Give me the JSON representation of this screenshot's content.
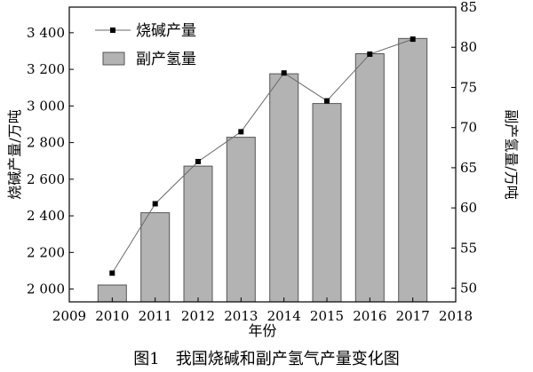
{
  "chart_data": {
    "type": "bar+line",
    "caption": "图1　我国烧碱和副产氢气产量变化图",
    "xlabel": "年份",
    "ylabel_left": "烧碱产量/万吨",
    "ylabel_right": "副产氢量/万吨",
    "x_ticks": [
      "2009",
      "2010",
      "2011",
      "2012",
      "2013",
      "2014",
      "2015",
      "2016",
      "2017",
      "2018"
    ],
    "xlim": [
      2009,
      2018
    ],
    "y_left_ticks": [
      "2 000",
      "2 200",
      "2 400",
      "2 600",
      "2 800",
      "3 000",
      "3 200",
      "3 400"
    ],
    "y_left_tick_values": [
      2000,
      2200,
      2400,
      2600,
      2800,
      3000,
      3200,
      3400
    ],
    "y_left_lim": [
      1930,
      3540
    ],
    "y_right_ticks": [
      "50",
      "55",
      "60",
      "65",
      "70",
      "75",
      "80",
      "85"
    ],
    "y_right_tick_values": [
      50,
      55,
      60,
      65,
      70,
      75,
      80,
      85
    ],
    "y_right_lim": [
      48.3,
      85
    ],
    "categories": [
      "2010",
      "2011",
      "2012",
      "2013",
      "2014",
      "2015",
      "2016",
      "2017"
    ],
    "legend_position": "top-left",
    "series": [
      {
        "name": "烧碱产量",
        "kind": "line",
        "axis": "left",
        "marker": "square",
        "color": "#000000",
        "line_color": "#6a6a6a",
        "x": [
          2010,
          2011,
          2012,
          2013,
          2014,
          2015,
          2016,
          2017
        ],
        "values": [
          2087,
          2466,
          2696,
          2859,
          3180,
          3028,
          3283,
          3365
        ]
      },
      {
        "name": "副产氢量",
        "kind": "bar",
        "axis": "right",
        "color": "#b3b3b3",
        "edge_color": "#555555",
        "x": [
          2010,
          2011,
          2012,
          2013,
          2014,
          2015,
          2016,
          2017
        ],
        "values": [
          50.4,
          59.4,
          65.2,
          68.8,
          76.7,
          73.0,
          79.2,
          81.1
        ]
      }
    ]
  }
}
